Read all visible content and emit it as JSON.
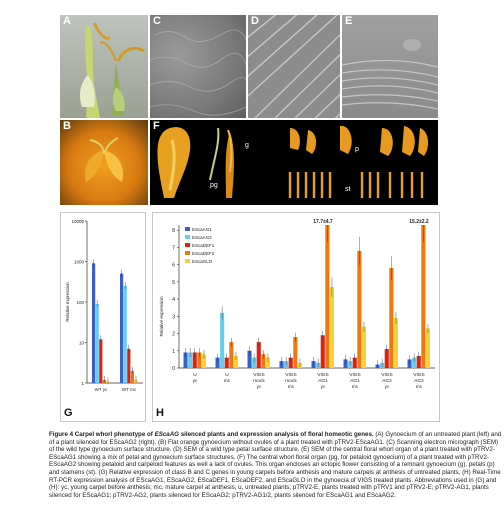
{
  "figure": {
    "panel_labels": {
      "A": "A",
      "B": "B",
      "C": "C",
      "D": "D",
      "E": "E",
      "F": "F",
      "G": "G",
      "H": "H"
    },
    "organ_labels": {
      "g": "g",
      "pg": "pg",
      "p": "p",
      "st": "st"
    }
  },
  "caption": {
    "title": "Figure 4 Carpel whorl phenotype of",
    "title_gene": "EScaAG",
    "title_rest": "silenced plants and expression analysis of floral homeotic genes.",
    "body": "(A) Gynoecium of an untreated plant (left) and of a plant silenced for EScaAG2 (right). (B) Flat orange gynoecium without ovules of a plant treated with pTRV2-EScaAG1. (C) Scanning electron micrograph (SEM) of the wild type gynoecium surface structure. (D) SEM of a wild type petal surface structure. (E) SEM of the central floral whorl organ of a plant treated with pTRV2-EScaAG1 showing a mix of petal and gynoecium surface structures. (F) The central whorl floral organ (pg, for petaloid gynoecium) of a plant treated with pTRV2-EScaAG2 showing petaloid and carpeloid features as well a lack of ovules. This organ encloses an ectopic flower consisting of a remnant gynoecium (g), petals (p) and stamens (st). (G) Relative expression of class B and C genes in young carpels before anthesis and mature carpels at anthesis of untreated plants, (H) Real-Time RT-PCR expression analysis of EScaAG1, EScaAG2, EScaDEF1, EScaDEF2, and EScaGLO in the gynoecia of VIGS treated plants. Abbreviations used in (G) and (H): yc, young carpel before anthesis; mc, mature carpel at anthesis; u, untreated plants; pTRV2-E, plants treated with pTRV1 and pTRV2-E; pTRV2-AG1, plants silenced for EScaAG1; pTRV2-AG2, plants silenced for EScaAG2; pTRV2-AG1/2, plants silenced for EScaAG1 and EScaAG2."
  },
  "colors": {
    "AG1": "#3a5fcd",
    "AG2": "#66ccee",
    "DEF1": "#dd2211",
    "DEF2": "#ee7711",
    "GLO": "#f5d23c"
  },
  "chart_data": [
    {
      "panel": "G",
      "type": "bar",
      "scale": "log",
      "ylabel": "Relative expression",
      "y_ticks": [
        "10000",
        "1000",
        "100",
        "10",
        "1"
      ],
      "ylim": [
        1,
        10000
      ],
      "categories": [
        "WT yc",
        "WT mc"
      ],
      "series": [
        {
          "key": "AG1",
          "values": [
            900,
            500
          ]
        },
        {
          "key": "AG2",
          "values": [
            90,
            250
          ]
        },
        {
          "key": "DEF1",
          "values": [
            12,
            7
          ]
        },
        {
          "key": "DEF2",
          "values": [
            1.2,
            2
          ]
        },
        {
          "key": "GLO",
          "values": [
            1.1,
            1.2
          ]
        }
      ]
    },
    {
      "panel": "H",
      "type": "bar",
      "ylabel": "Relative expression",
      "ylim": [
        0,
        8.3
      ],
      "y_ticks": [
        "0",
        "1",
        "2",
        "3",
        "4",
        "5",
        "6",
        "7",
        "8"
      ],
      "legend": [
        "EScaAG1",
        "EScaAG2",
        "EScaDEF1",
        "EScaDEF2",
        "EScaGLO"
      ],
      "categories": [
        {
          "line1": "U",
          "line2": "yc"
        },
        {
          "line1": "U",
          "line2": "mc"
        },
        {
          "line1": "VIGS",
          "line2": "mock",
          "line3": "yc"
        },
        {
          "line1": "VIGS",
          "line2": "mock",
          "line3": "mc"
        },
        {
          "line1": "VIGS",
          "line2": "AG1",
          "line3": "yc"
        },
        {
          "line1": "VIGS",
          "line2": "AG1",
          "line3": "mc"
        },
        {
          "line1": "VIGS",
          "line2": "AG2",
          "line3": "yc"
        },
        {
          "line1": "VIGS",
          "line2": "AG2",
          "line3": "mc"
        }
      ],
      "series": [
        {
          "name": "EScaAG1",
          "key": "AG1",
          "values": [
            0.9,
            0.6,
            1.0,
            0.4,
            0.4,
            0.5,
            0.2,
            0.5
          ]
        },
        {
          "name": "EScaAG2",
          "key": "AG2",
          "values": [
            0.9,
            3.2,
            0.6,
            0.4,
            0.3,
            0.4,
            0.3,
            0.6
          ]
        },
        {
          "name": "EScaDEF1",
          "key": "DEF1",
          "values": [
            0.9,
            0.6,
            1.5,
            0.6,
            1.9,
            0.6,
            1.1,
            0.7
          ]
        },
        {
          "name": "EScaDEF2",
          "key": "DEF2",
          "values": [
            0.9,
            1.5,
            0.8,
            1.8,
            8.3,
            6.8,
            5.8,
            8.3
          ]
        },
        {
          "name": "EScaGLO",
          "key": "GLO",
          "values": [
            0.8,
            0.7,
            0.6,
            0.3,
            4.7,
            2.4,
            2.9,
            2.3
          ]
        }
      ],
      "annotations": [
        {
          "text": "17.7±4.7",
          "category_index": 4
        },
        {
          "text": "15.2±2.2",
          "category_index": 7
        }
      ]
    }
  ]
}
